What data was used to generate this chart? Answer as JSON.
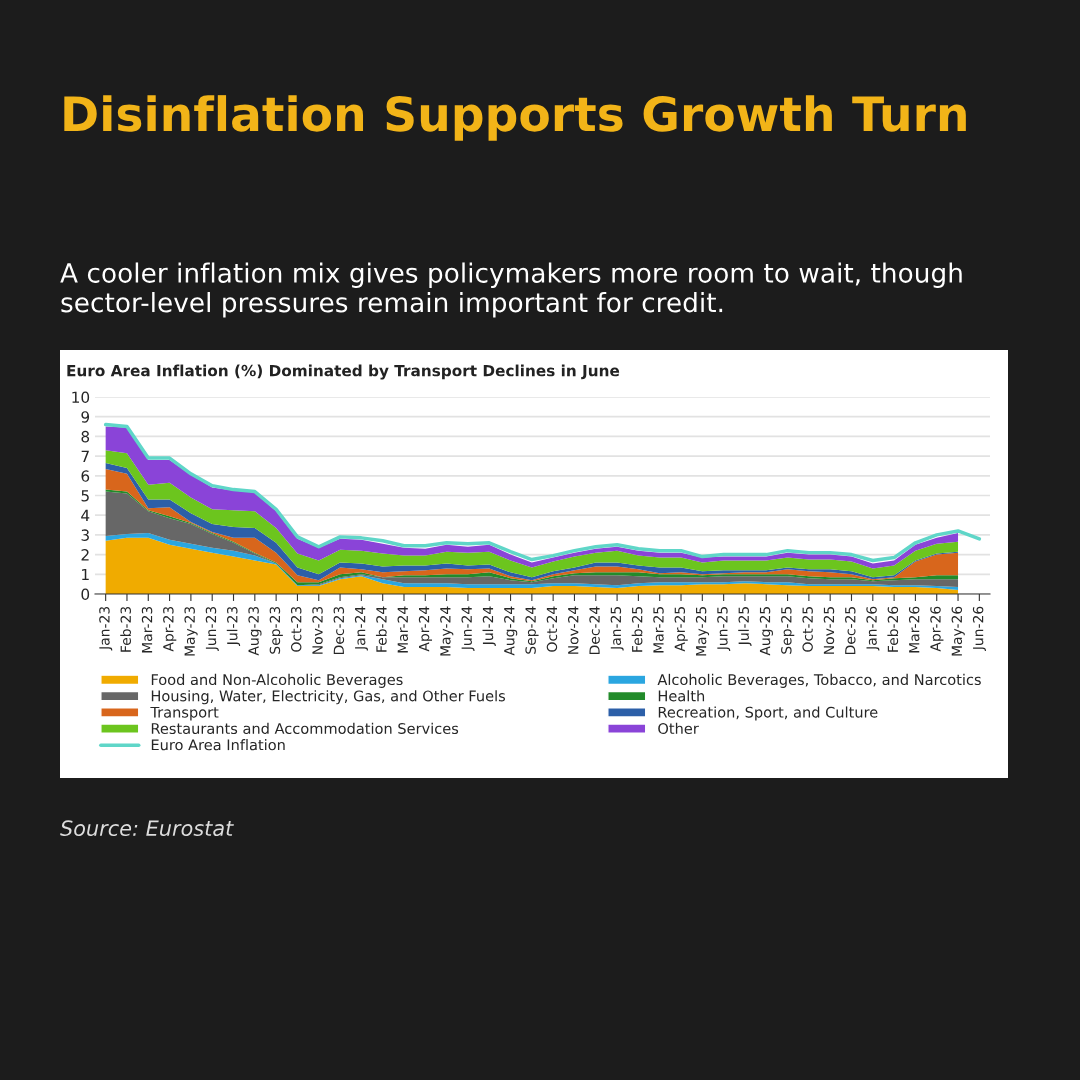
{
  "chart_data": {
    "type": "area",
    "stacked": true,
    "title": "Disinflation Supports Growth Turn",
    "subtitle": "A cooler inflation mix gives policymakers more room to wait, though sector-level pressures remain important for credit.",
    "annotations": [
      "Euro Area Inflation (%) Dominated by Transport Declines in June",
      "Source: Eurostat"
    ],
    "categories": [
      "Jan-23",
      "Feb-23",
      "Mar-23",
      "Apr-23",
      "May-23",
      "Jun-23",
      "Jul-23",
      "Aug-23",
      "Sep-23",
      "Oct-23",
      "Nov-23",
      "Dec-23",
      "Jan-24",
      "Feb-24",
      "Mar-24",
      "Apr-24",
      "May-24",
      "Jun-24",
      "Jul-24",
      "Aug-24",
      "Sep-24",
      "Oct-24",
      "Nov-24",
      "Dec-24",
      "Jan-25",
      "Feb-25",
      "Mar-25",
      "Apr-25",
      "May-25",
      "Jun-25",
      "Jul-25",
      "Aug-25",
      "Sep-25",
      "Oct-25",
      "Nov-25",
      "Dec-25",
      "Jan-26",
      "Feb-26",
      "Mar-26",
      "Apr-26",
      "May-26",
      "Jun-26"
    ],
    "series": [
      {
        "name": "Food and Non-Alcoholic Beverages",
        "color": "#f0ab00",
        "values": [
          2.7,
          2.85,
          2.85,
          2.5,
          2.3,
          2.1,
          1.9,
          1.7,
          1.5,
          0.4,
          0.4,
          0.75,
          0.9,
          0.55,
          0.35,
          0.35,
          0.35,
          0.3,
          0.3,
          0.3,
          0.3,
          0.4,
          0.4,
          0.35,
          0.3,
          0.4,
          0.45,
          0.45,
          0.5,
          0.5,
          0.55,
          0.5,
          0.45,
          0.4,
          0.4,
          0.4,
          0.4,
          0.35,
          0.35,
          0.3,
          0.2,
          null
        ]
      },
      {
        "name": "Alcoholic Beverages, Tobacco, and Narcotics",
        "color": "#2ba6e0",
        "values": [
          0.25,
          0.2,
          0.25,
          0.25,
          0.25,
          0.25,
          0.3,
          0.25,
          0.05,
          0.05,
          0.05,
          0.05,
          0.05,
          0.2,
          0.2,
          0.2,
          0.2,
          0.2,
          0.2,
          0.2,
          0.2,
          0.15,
          0.15,
          0.15,
          0.15,
          0.15,
          0.15,
          0.15,
          0.1,
          0.1,
          0.1,
          0.1,
          0.15,
          0.1,
          0.1,
          0.1,
          0.1,
          0.1,
          0.1,
          0.1,
          0.15,
          null
        ]
      },
      {
        "name": "Housing, Water, Electricity, Gas, and Other Fuels",
        "color": "#676767",
        "values": [
          2.25,
          2.05,
          1.1,
          1.1,
          1.0,
          0.7,
          0.4,
          0.1,
          0,
          0,
          0.05,
          0.05,
          0.05,
          0.1,
          0.3,
          0.3,
          0.3,
          0.35,
          0.4,
          0.2,
          0.1,
          0.25,
          0.4,
          0.45,
          0.5,
          0.35,
          0.25,
          0.25,
          0.25,
          0.3,
          0.25,
          0.3,
          0.3,
          0.3,
          0.25,
          0.25,
          0.15,
          0.25,
          0.3,
          0.35,
          0.4,
          null
        ]
      },
      {
        "name": "Health",
        "color": "#228b2a",
        "values": [
          0.1,
          0.1,
          0.05,
          0.1,
          0.05,
          0.05,
          0.05,
          0.05,
          0.05,
          0.15,
          0.1,
          0.15,
          0.1,
          0,
          0.1,
          0.1,
          0.15,
          0.15,
          0.2,
          0.1,
          0.05,
          0.1,
          0.1,
          0.15,
          0.15,
          0.2,
          0.15,
          0.15,
          0.1,
          0.1,
          0.1,
          0.1,
          0.1,
          0.1,
          0.1,
          0.1,
          0.05,
          0.1,
          0.1,
          0.2,
          0.2,
          null
        ]
      },
      {
        "name": "Transport",
        "color": "#d8661c",
        "values": [
          1.05,
          0.9,
          0.1,
          0.45,
          0.05,
          0.05,
          0.2,
          0.75,
          0.5,
          0.35,
          0.1,
          0.35,
          0.15,
          0.25,
          0.2,
          0.25,
          0.3,
          0.25,
          0.2,
          0.1,
          0.05,
          0.1,
          0.15,
          0.3,
          0.3,
          0.15,
          0.05,
          0.1,
          0.05,
          0.05,
          0.1,
          0.1,
          0.25,
          0.25,
          0.25,
          0.15,
          0.05,
          0.05,
          0.8,
          1.05,
          1.15,
          null
        ]
      },
      {
        "name": "Recreation, Sport, and Culture",
        "color": "#2c5fa8",
        "values": [
          0.3,
          0.3,
          0.45,
          0.4,
          0.45,
          0.4,
          0.55,
          0.5,
          0.5,
          0.4,
          0.3,
          0.25,
          0.3,
          0.3,
          0.3,
          0.25,
          0.25,
          0.2,
          0.2,
          0.2,
          0.15,
          0.15,
          0.15,
          0.2,
          0.2,
          0.2,
          0.3,
          0.25,
          0.15,
          0.15,
          0.1,
          0.1,
          0.1,
          0.1,
          0.15,
          0.15,
          0.1,
          0.1,
          0.05,
          0.05,
          0.05,
          null
        ]
      },
      {
        "name": "Restaurants and Accommodation Services",
        "color": "#6cc51e",
        "values": [
          0.65,
          0.75,
          0.75,
          0.85,
          0.8,
          0.75,
          0.85,
          0.85,
          0.75,
          0.7,
          0.7,
          0.65,
          0.65,
          0.65,
          0.5,
          0.5,
          0.6,
          0.65,
          0.65,
          0.6,
          0.5,
          0.5,
          0.55,
          0.5,
          0.6,
          0.5,
          0.5,
          0.5,
          0.45,
          0.5,
          0.5,
          0.5,
          0.5,
          0.5,
          0.5,
          0.5,
          0.45,
          0.5,
          0.5,
          0.5,
          0.5,
          null
        ]
      },
      {
        "name": "Other",
        "color": "#8a44d8",
        "values": [
          1.2,
          1.3,
          1.25,
          1.15,
          1.15,
          1.1,
          1.0,
          0.95,
          0.85,
          0.75,
          0.65,
          0.55,
          0.55,
          0.5,
          0.4,
          0.35,
          0.35,
          0.3,
          0.35,
          0.3,
          0.25,
          0.2,
          0.2,
          0.2,
          0.2,
          0.25,
          0.25,
          0.25,
          0.25,
          0.2,
          0.2,
          0.2,
          0.25,
          0.25,
          0.25,
          0.25,
          0.25,
          0.25,
          0.3,
          0.3,
          0.45,
          null
        ]
      },
      {
        "name": "Euro Area Inflation",
        "type": "line",
        "color": "#5fd6c8",
        "values": [
          8.6,
          8.5,
          6.9,
          6.9,
          6.1,
          5.5,
          5.3,
          5.2,
          4.3,
          2.9,
          2.4,
          2.9,
          2.85,
          2.7,
          2.45,
          2.45,
          2.6,
          2.55,
          2.6,
          2.15,
          1.75,
          1.95,
          2.2,
          2.4,
          2.5,
          2.3,
          2.2,
          2.2,
          1.9,
          2.0,
          2.0,
          2.0,
          2.2,
          2.1,
          2.1,
          2.0,
          1.7,
          1.85,
          2.6,
          3.0,
          3.2,
          2.8
        ]
      }
    ],
    "ylim": [
      0,
      10
    ],
    "yticks": [
      0,
      1,
      2,
      3,
      4,
      5,
      6,
      7,
      8,
      9,
      10
    ],
    "grid": "y",
    "legend": "bottom"
  }
}
